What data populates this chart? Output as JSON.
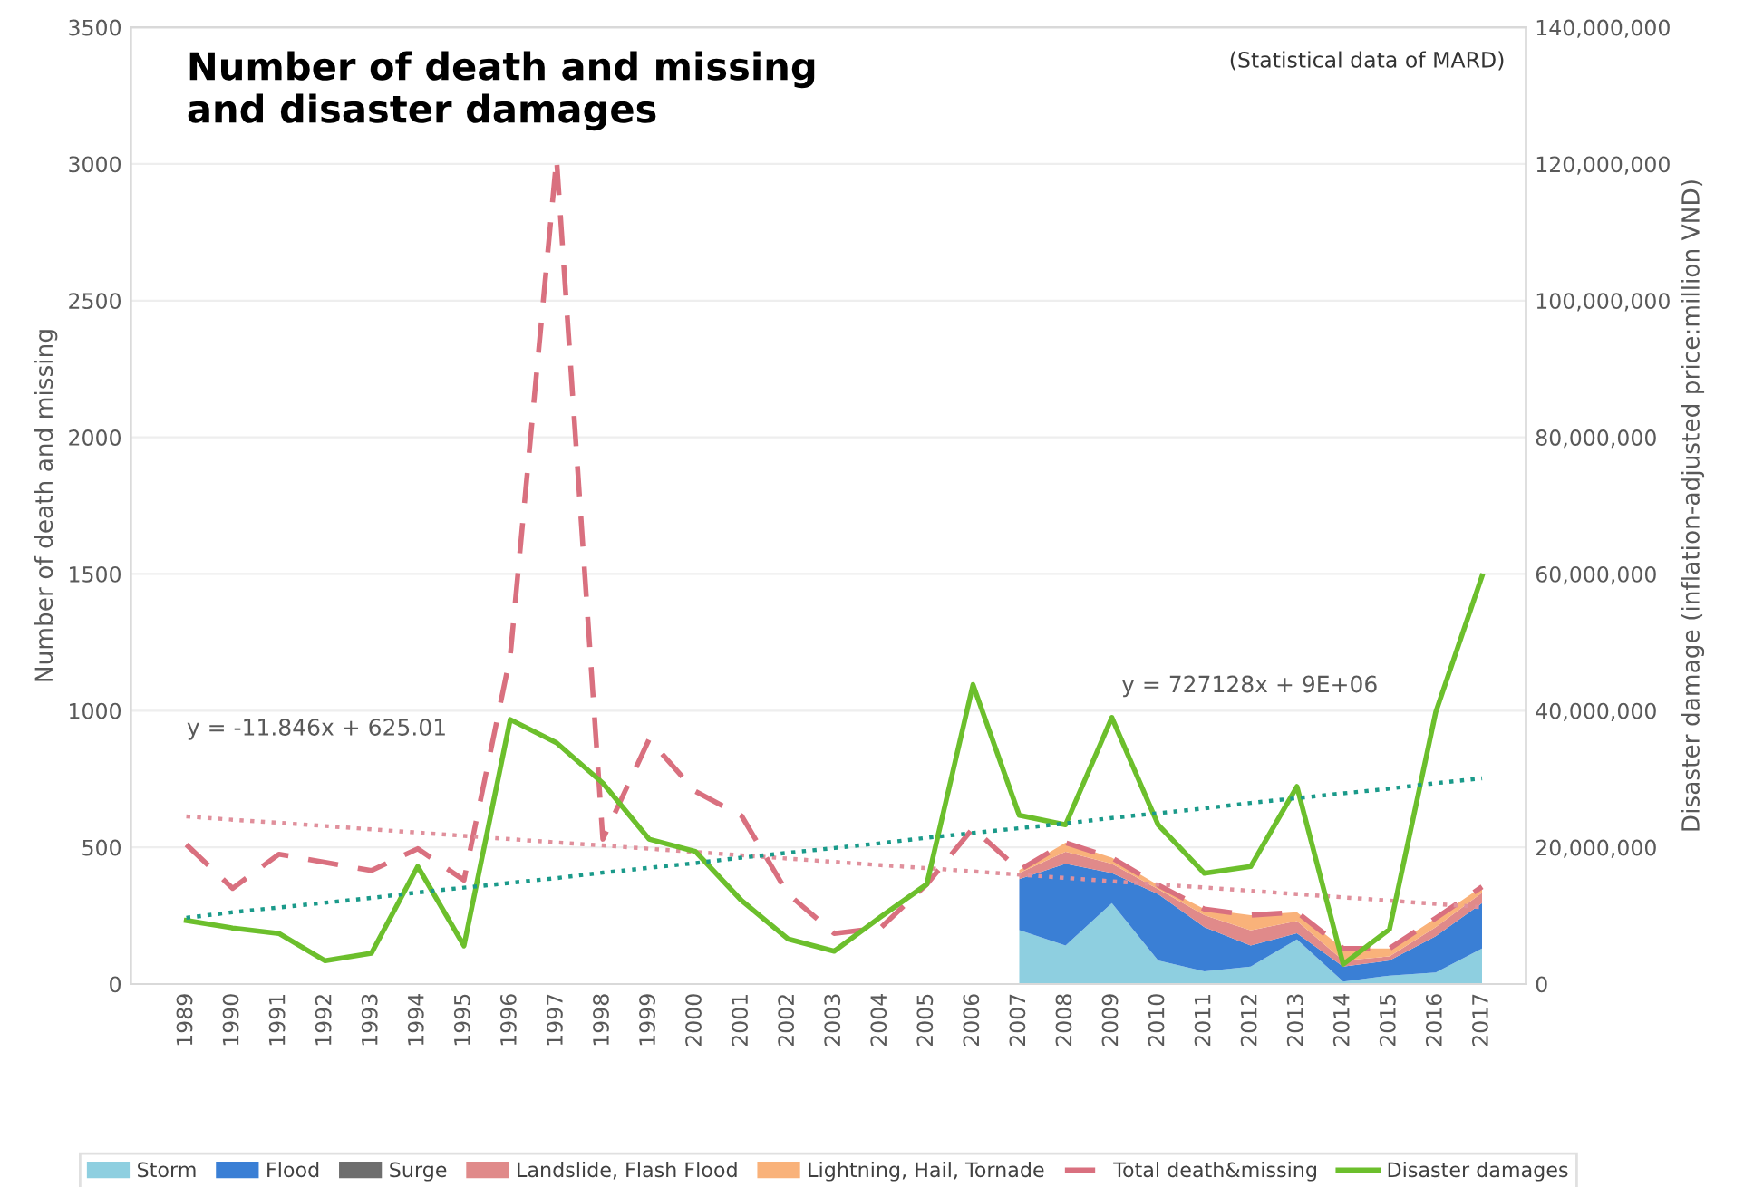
{
  "chart_data": {
    "type": "line",
    "title": "Number of death and missing\nand disaster damages",
    "ylabel": "Number of death and missing",
    "y2label": "Disaster damage (inflation-adjusted price:million VND)",
    "categories": [
      "1989",
      "1990",
      "1991",
      "1992",
      "1993",
      "1994",
      "1995",
      "1996",
      "1997",
      "1998",
      "1999",
      "2000",
      "2001",
      "2002",
      "2003",
      "2004",
      "2005",
      "2006",
      "2007",
      "2008",
      "2009",
      "2010",
      "2011",
      "2012",
      "2013",
      "2014",
      "2015",
      "2016",
      "2017"
    ],
    "stacked": true,
    "series": [
      {
        "name": "Storm",
        "type": "area",
        "color": "#8ecfe0",
        "values": [
          null,
          null,
          null,
          null,
          null,
          null,
          null,
          null,
          null,
          null,
          null,
          null,
          null,
          null,
          null,
          null,
          null,
          null,
          197,
          141,
          296,
          86,
          46,
          64,
          163,
          9,
          31,
          42,
          130
        ]
      },
      {
        "name": "Flood",
        "type": "area",
        "color": "#3a7fd5",
        "values": [
          null,
          null,
          null,
          null,
          null,
          null,
          null,
          null,
          null,
          null,
          null,
          null,
          null,
          null,
          null,
          null,
          null,
          null,
          187,
          299,
          110,
          243,
          162,
          77,
          23,
          55,
          55,
          133,
          166
        ]
      },
      {
        "name": "Surge",
        "type": "area",
        "color": "#6e6e6e",
        "values": [
          null,
          null,
          null,
          null,
          null,
          null,
          null,
          null,
          null,
          null,
          null,
          null,
          null,
          null,
          null,
          null,
          null,
          null,
          null,
          null,
          null,
          null,
          null,
          null,
          null,
          null,
          null,
          null,
          null
        ]
      },
      {
        "name": "Landslide, Flash Flood",
        "type": "area",
        "color": "#e08a8a",
        "values": [
          null,
          null,
          null,
          null,
          null,
          null,
          null,
          null,
          null,
          null,
          null,
          null,
          null,
          null,
          null,
          null,
          null,
          null,
          22,
          44,
          34,
          18,
          44,
          55,
          44,
          22,
          15,
          33,
          38
        ]
      },
      {
        "name": "Lightning, Hail, Tornade",
        "type": "area",
        "color": "#f9b27a",
        "values": [
          null,
          null,
          null,
          null,
          null,
          null,
          null,
          null,
          null,
          null,
          null,
          null,
          null,
          null,
          null,
          null,
          null,
          null,
          11,
          33,
          22,
          15,
          22,
          56,
          33,
          44,
          29,
          33,
          22
        ]
      },
      {
        "name": "Total death&missing",
        "line_style": "dashed",
        "color": "#d9707f",
        "values": [
          510,
          350,
          475,
          445,
          415,
          495,
          380,
          1200,
          3020,
          530,
          895,
          705,
          615,
          330,
          185,
          205,
          365,
          570,
          417,
          517,
          462,
          362,
          274,
          252,
          263,
          130,
          130,
          241,
          356
        ]
      },
      {
        "name": "Disaster damages",
        "axis": "y2",
        "line_style": "solid",
        "color": "#6cbf2c",
        "values": [
          9300000,
          8200000,
          7400000,
          3400000,
          4500000,
          17200000,
          5600000,
          38700000,
          35300000,
          29400000,
          21200000,
          19400000,
          12200000,
          6600000,
          4800000,
          9800000,
          14600000,
          43800000,
          24700000,
          23300000,
          39000000,
          23300000,
          16200000,
          17200000,
          28900000,
          2900000,
          8000000,
          39800000,
          59700000
        ]
      },
      {
        "line_style": "dotted",
        "color": "#e0909c",
        "values": [
          613,
          601,
          590,
          578,
          566,
          554,
          542,
          530,
          518,
          507,
          495,
          483,
          471,
          459,
          447,
          435,
          424,
          412,
          400,
          388,
          376,
          364,
          353,
          341,
          329,
          317,
          305,
          293,
          281
        ]
      },
      {
        "axis": "y2",
        "line_style": "dotted",
        "color": "#1a9a8a",
        "values": [
          9700000,
          10500000,
          11200000,
          11900000,
          12600000,
          13400000,
          14100000,
          14800000,
          15500000,
          16300000,
          17000000,
          17700000,
          18500000,
          19200000,
          19900000,
          20600000,
          21400000,
          22100000,
          22800000,
          23500000,
          24300000,
          25000000,
          25700000,
          26500000,
          27200000,
          27900000,
          28600000,
          29400000,
          30100000
        ]
      }
    ],
    "ylim": [
      0,
      3500
    ],
    "yticks": [
      0,
      500,
      1000,
      1500,
      2000,
      2500,
      3000,
      3500
    ],
    "y2lim": [
      0,
      140000000
    ],
    "y2ticks": [
      {
        "value": 0,
        "label": "0"
      },
      {
        "value": 20000000,
        "label": "20,000,000"
      },
      {
        "value": 40000000,
        "label": "40,000,000"
      },
      {
        "value": 60000000,
        "label": "60,000,000"
      },
      {
        "value": 80000000,
        "label": "80,000,000"
      },
      {
        "value": 100000000,
        "label": "100,000,000"
      },
      {
        "value": 120000000,
        "label": "120,000,000"
      },
      {
        "value": 140000000,
        "label": "140,000,000"
      }
    ],
    "grid": "y",
    "legend": "bottom",
    "marker": "none",
    "annotations": [
      "(Statistical data of MARD)",
      "y = -11.846x + 625.01",
      "y = 727128x + 9E+06"
    ]
  }
}
